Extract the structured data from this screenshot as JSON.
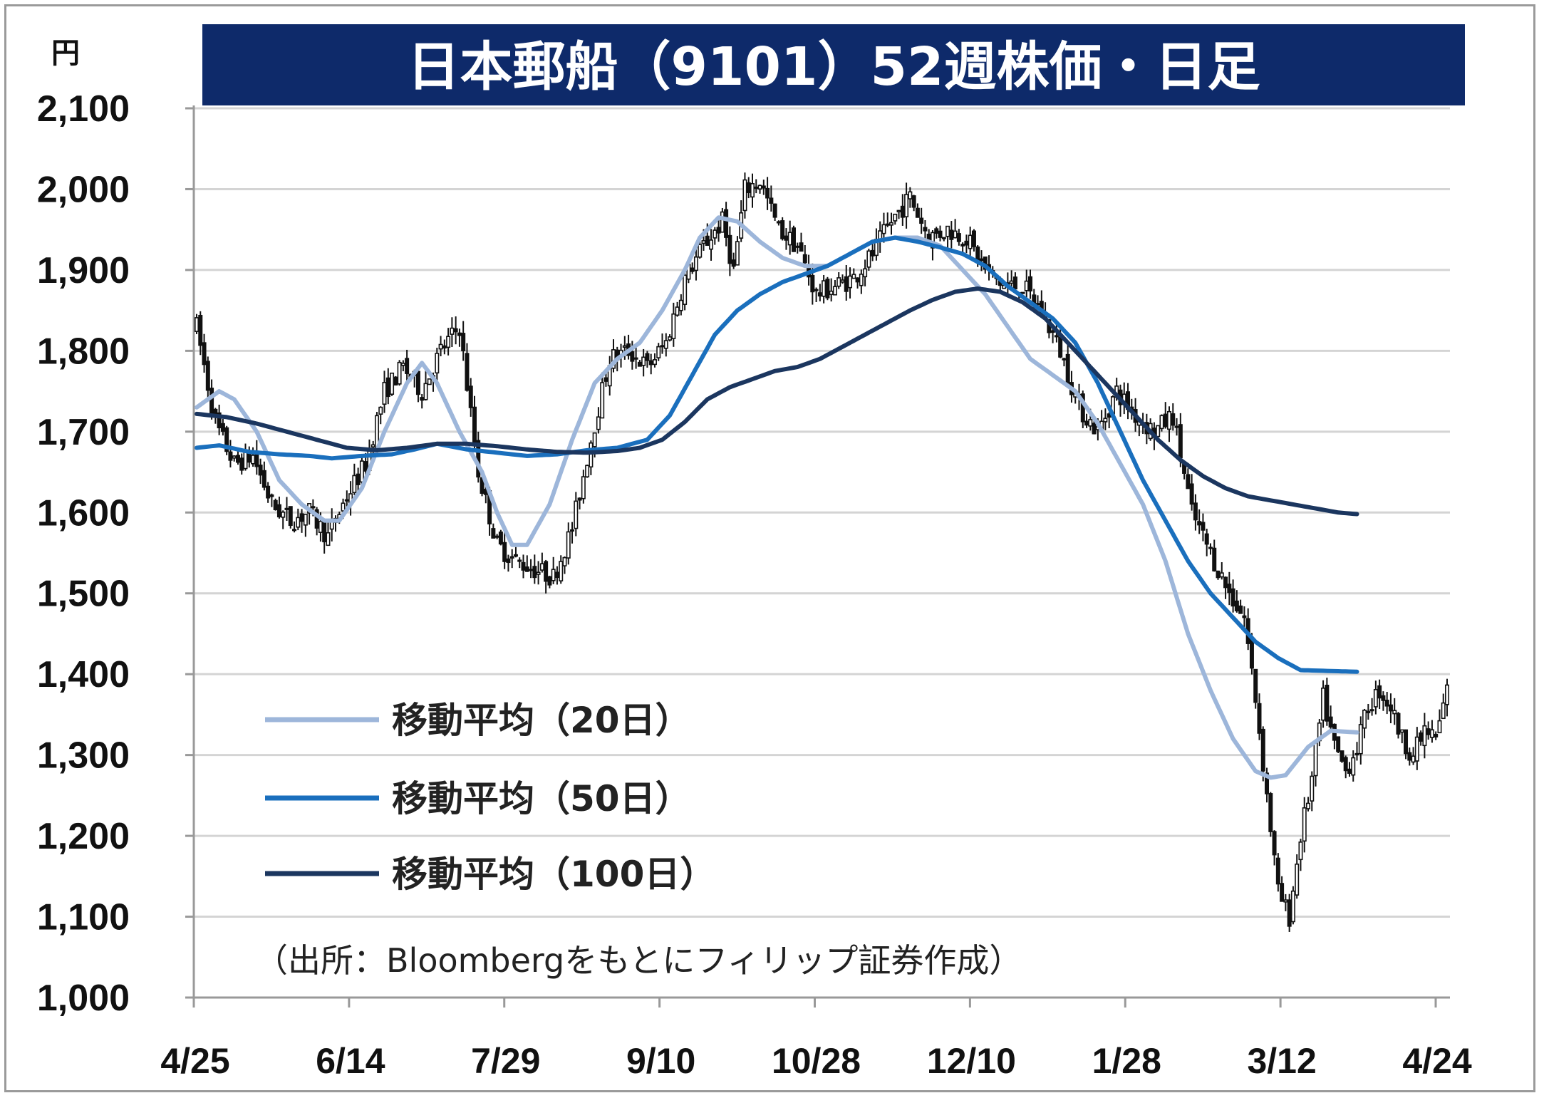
{
  "chart_data": {
    "type": "candlestick",
    "title": "日本郵船（9101）52週株価・日足",
    "unit_label": "円",
    "ylim": [
      1000,
      2100
    ],
    "yticks": [
      1000,
      1100,
      1200,
      1300,
      1400,
      1500,
      1600,
      1700,
      1800,
      1900,
      2000,
      2100
    ],
    "ytick_labels": [
      "1,000",
      "1,100",
      "1,200",
      "1,300",
      "1,400",
      "1,500",
      "1,600",
      "1,700",
      "1,800",
      "1,900",
      "2,000",
      "2,100"
    ],
    "xtick_labels": [
      "4/25",
      "6/14",
      "7/29",
      "9/10",
      "10/28",
      "12/10",
      "1/28",
      "3/12",
      "4/24"
    ],
    "grid": true,
    "legend_placement": "bottom-left",
    "source": "（出所：Bloombergをもとにフィリップ証券作成）",
    "colors": {
      "title_bg": "#0e2a6a",
      "ma20": "#9db6da",
      "ma50": "#1a6fbd",
      "ma100": "#1b365f",
      "candle": "#111111",
      "grid": "#d4d4d4"
    },
    "price_keypoints": [
      [
        0,
        1830
      ],
      [
        5,
        1710
      ],
      [
        10,
        1660
      ],
      [
        15,
        1670
      ],
      [
        20,
        1610
      ],
      [
        25,
        1590
      ],
      [
        30,
        1600
      ],
      [
        35,
        1570
      ],
      [
        40,
        1620
      ],
      [
        45,
        1660
      ],
      [
        50,
        1750
      ],
      [
        55,
        1780
      ],
      [
        60,
        1750
      ],
      [
        65,
        1800
      ],
      [
        70,
        1830
      ],
      [
        75,
        1650
      ],
      [
        80,
        1560
      ],
      [
        85,
        1540
      ],
      [
        90,
        1530
      ],
      [
        95,
        1520
      ],
      [
        100,
        1580
      ],
      [
        105,
        1690
      ],
      [
        110,
        1790
      ],
      [
        115,
        1800
      ],
      [
        120,
        1780
      ],
      [
        125,
        1810
      ],
      [
        130,
        1890
      ],
      [
        135,
        1930
      ],
      [
        140,
        1960
      ],
      [
        143,
        1900
      ],
      [
        146,
        2000
      ],
      [
        150,
        2010
      ],
      [
        155,
        1950
      ],
      [
        160,
        1930
      ],
      [
        165,
        1870
      ],
      [
        170,
        1880
      ],
      [
        175,
        1890
      ],
      [
        180,
        1920
      ],
      [
        185,
        1960
      ],
      [
        190,
        1990
      ],
      [
        195,
        1940
      ],
      [
        200,
        1950
      ],
      [
        205,
        1940
      ],
      [
        210,
        1900
      ],
      [
        215,
        1880
      ],
      [
        220,
        1880
      ],
      [
        225,
        1850
      ],
      [
        230,
        1800
      ],
      [
        235,
        1730
      ],
      [
        240,
        1700
      ],
      [
        245,
        1750
      ],
      [
        250,
        1720
      ],
      [
        255,
        1700
      ],
      [
        260,
        1720
      ],
      [
        265,
        1600
      ],
      [
        270,
        1550
      ],
      [
        275,
        1500
      ],
      [
        279,
        1470
      ],
      [
        282,
        1370
      ],
      [
        285,
        1250
      ],
      [
        288,
        1130
      ],
      [
        291,
        1100
      ],
      [
        294,
        1200
      ],
      [
        297,
        1270
      ],
      [
        300,
        1370
      ],
      [
        303,
        1310
      ],
      [
        306,
        1280
      ],
      [
        309,
        1310
      ],
      [
        312,
        1360
      ],
      [
        315,
        1380
      ],
      [
        318,
        1360
      ],
      [
        321,
        1320
      ],
      [
        324,
        1300
      ],
      [
        327,
        1330
      ],
      [
        330,
        1320
      ],
      [
        333,
        1380
      ]
    ],
    "series": [
      {
        "name": "移動平均（20日）",
        "points": [
          [
            0,
            1730
          ],
          [
            6,
            1750
          ],
          [
            10,
            1740
          ],
          [
            16,
            1700
          ],
          [
            22,
            1640
          ],
          [
            28,
            1610
          ],
          [
            34,
            1590
          ],
          [
            38,
            1590
          ],
          [
            44,
            1630
          ],
          [
            50,
            1700
          ],
          [
            56,
            1760
          ],
          [
            60,
            1785
          ],
          [
            64,
            1760
          ],
          [
            70,
            1700
          ],
          [
            76,
            1650
          ],
          [
            80,
            1600
          ],
          [
            84,
            1560
          ],
          [
            88,
            1560
          ],
          [
            94,
            1610
          ],
          [
            100,
            1690
          ],
          [
            106,
            1760
          ],
          [
            112,
            1790
          ],
          [
            118,
            1810
          ],
          [
            124,
            1850
          ],
          [
            130,
            1900
          ],
          [
            134,
            1940
          ],
          [
            139,
            1965
          ],
          [
            144,
            1960
          ],
          [
            150,
            1935
          ],
          [
            156,
            1915
          ],
          [
            162,
            1905
          ],
          [
            168,
            1905
          ],
          [
            174,
            1920
          ],
          [
            180,
            1935
          ],
          [
            186,
            1940
          ],
          [
            192,
            1940
          ],
          [
            198,
            1930
          ],
          [
            204,
            1900
          ],
          [
            210,
            1870
          ],
          [
            216,
            1830
          ],
          [
            222,
            1790
          ],
          [
            228,
            1770
          ],
          [
            234,
            1750
          ],
          [
            240,
            1710
          ],
          [
            246,
            1660
          ],
          [
            252,
            1610
          ],
          [
            258,
            1540
          ],
          [
            264,
            1450
          ],
          [
            270,
            1380
          ],
          [
            276,
            1320
          ],
          [
            282,
            1280
          ],
          [
            286,
            1272
          ],
          [
            290,
            1275
          ],
          [
            296,
            1310
          ],
          [
            302,
            1330
          ],
          [
            309,
            1328
          ]
        ]
      },
      {
        "name": "移動平均（50日）",
        "points": [
          [
            0,
            1680
          ],
          [
            6,
            1683
          ],
          [
            14,
            1675
          ],
          [
            22,
            1672
          ],
          [
            30,
            1670
          ],
          [
            36,
            1667
          ],
          [
            44,
            1670
          ],
          [
            52,
            1672
          ],
          [
            58,
            1678
          ],
          [
            64,
            1685
          ],
          [
            72,
            1678
          ],
          [
            80,
            1674
          ],
          [
            88,
            1670
          ],
          [
            96,
            1672
          ],
          [
            104,
            1677
          ],
          [
            112,
            1680
          ],
          [
            120,
            1690
          ],
          [
            126,
            1720
          ],
          [
            132,
            1770
          ],
          [
            138,
            1820
          ],
          [
            144,
            1850
          ],
          [
            150,
            1870
          ],
          [
            156,
            1885
          ],
          [
            162,
            1895
          ],
          [
            168,
            1905
          ],
          [
            174,
            1920
          ],
          [
            180,
            1935
          ],
          [
            186,
            1940
          ],
          [
            192,
            1935
          ],
          [
            198,
            1928
          ],
          [
            204,
            1920
          ],
          [
            210,
            1905
          ],
          [
            216,
            1880
          ],
          [
            222,
            1860
          ],
          [
            228,
            1840
          ],
          [
            234,
            1810
          ],
          [
            240,
            1760
          ],
          [
            246,
            1700
          ],
          [
            252,
            1640
          ],
          [
            258,
            1590
          ],
          [
            264,
            1540
          ],
          [
            270,
            1500
          ],
          [
            276,
            1470
          ],
          [
            282,
            1440
          ],
          [
            288,
            1420
          ],
          [
            294,
            1405
          ],
          [
            309,
            1403
          ]
        ]
      },
      {
        "name": "移動平均（100日）",
        "points": [
          [
            0,
            1722
          ],
          [
            8,
            1718
          ],
          [
            16,
            1710
          ],
          [
            24,
            1700
          ],
          [
            32,
            1690
          ],
          [
            40,
            1680
          ],
          [
            48,
            1677
          ],
          [
            56,
            1680
          ],
          [
            64,
            1685
          ],
          [
            72,
            1685
          ],
          [
            80,
            1682
          ],
          [
            88,
            1678
          ],
          [
            96,
            1675
          ],
          [
            104,
            1674
          ],
          [
            112,
            1676
          ],
          [
            118,
            1680
          ],
          [
            124,
            1690
          ],
          [
            130,
            1712
          ],
          [
            136,
            1740
          ],
          [
            142,
            1755
          ],
          [
            148,
            1765
          ],
          [
            154,
            1775
          ],
          [
            160,
            1780
          ],
          [
            166,
            1790
          ],
          [
            172,
            1805
          ],
          [
            178,
            1820
          ],
          [
            184,
            1835
          ],
          [
            190,
            1850
          ],
          [
            196,
            1863
          ],
          [
            202,
            1873
          ],
          [
            208,
            1877
          ],
          [
            214,
            1873
          ],
          [
            220,
            1860
          ],
          [
            226,
            1840
          ],
          [
            232,
            1810
          ],
          [
            238,
            1780
          ],
          [
            244,
            1750
          ],
          [
            250,
            1720
          ],
          [
            256,
            1690
          ],
          [
            262,
            1665
          ],
          [
            268,
            1645
          ],
          [
            274,
            1630
          ],
          [
            280,
            1620
          ],
          [
            286,
            1615
          ],
          [
            292,
            1610
          ],
          [
            298,
            1605
          ],
          [
            304,
            1600
          ],
          [
            309,
            1598
          ]
        ]
      }
    ]
  }
}
